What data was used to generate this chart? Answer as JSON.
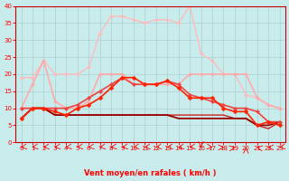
{
  "title": "",
  "xlabel": "Vent moyen/en rafales ( km/h )",
  "ylabel": "",
  "xlim": [
    -0.5,
    23.5
  ],
  "ylim": [
    0,
    40
  ],
  "yticks": [
    0,
    5,
    10,
    15,
    20,
    25,
    30,
    35,
    40
  ],
  "xticks": [
    0,
    1,
    2,
    3,
    4,
    5,
    6,
    7,
    8,
    9,
    10,
    11,
    12,
    13,
    14,
    15,
    16,
    17,
    18,
    19,
    20,
    21,
    22,
    23
  ],
  "background_color": "#c8ecec",
  "series": [
    {
      "x": [
        0,
        1,
        2,
        3,
        4,
        5,
        6,
        7,
        8,
        9,
        10,
        11,
        12,
        13,
        14,
        15,
        16,
        17,
        18,
        19,
        20,
        21,
        22,
        23
      ],
      "y": [
        19,
        19,
        24,
        20,
        20,
        20,
        22,
        32,
        37,
        37,
        36,
        35,
        36,
        36,
        35,
        40,
        26,
        24,
        20,
        20,
        14,
        13,
        11,
        10
      ],
      "color": "#ffbbbb",
      "lw": 1.0,
      "marker": "D",
      "ms": 2.0,
      "zorder": 2
    },
    {
      "x": [
        0,
        1,
        2,
        3,
        4,
        5,
        6,
        7,
        8,
        9,
        10,
        11,
        12,
        13,
        14,
        15,
        16,
        17,
        18,
        19,
        20,
        21,
        22,
        23
      ],
      "y": [
        10,
        17,
        24,
        12,
        10,
        10,
        12,
        20,
        20,
        20,
        17,
        17,
        17,
        17,
        17,
        20,
        20,
        20,
        20,
        20,
        20,
        13,
        11,
        10
      ],
      "color": "#ffaaaa",
      "lw": 1.2,
      "marker": "D",
      "ms": 2.0,
      "zorder": 3
    },
    {
      "x": [
        0,
        1,
        2,
        3,
        4,
        5,
        6,
        7,
        8,
        9,
        10,
        11,
        12,
        13,
        14,
        15,
        16,
        17,
        18,
        19,
        20,
        21,
        22,
        23
      ],
      "y": [
        10,
        10,
        10,
        10,
        10,
        11,
        13,
        15,
        17,
        19,
        17,
        17,
        17,
        18,
        17,
        14,
        13,
        12,
        11,
        10,
        10,
        9,
        6,
        6
      ],
      "color": "#ee4444",
      "lw": 1.2,
      "marker": "D",
      "ms": 2.2,
      "zorder": 5
    },
    {
      "x": [
        0,
        1,
        2,
        3,
        4,
        5,
        6,
        7,
        8,
        9,
        10,
        11,
        12,
        13,
        14,
        15,
        16,
        17,
        18,
        19,
        20,
        21,
        22,
        23
      ],
      "y": [
        7,
        10,
        10,
        9,
        8,
        10,
        11,
        13,
        16,
        19,
        19,
        17,
        17,
        18,
        16,
        13,
        13,
        13,
        10,
        9,
        9,
        5,
        6,
        5
      ],
      "color": "#ff2200",
      "lw": 1.2,
      "marker": "D",
      "ms": 2.5,
      "zorder": 6
    },
    {
      "x": [
        0,
        1,
        2,
        3,
        4,
        5,
        6,
        7,
        8,
        9,
        10,
        11,
        12,
        13,
        14,
        15,
        16,
        17,
        18,
        19,
        20,
        21,
        22,
        23
      ],
      "y": [
        7,
        10,
        10,
        8,
        8,
        8,
        8,
        8,
        8,
        8,
        8,
        8,
        8,
        8,
        7,
        7,
        7,
        7,
        7,
        7,
        7,
        5,
        5,
        6
      ],
      "color": "#990000",
      "lw": 1.3,
      "marker": null,
      "ms": 0,
      "zorder": 4
    },
    {
      "x": [
        0,
        1,
        2,
        3,
        4,
        5,
        6,
        7,
        8,
        9,
        10,
        11,
        12,
        13,
        14,
        15,
        16,
        17,
        18,
        19,
        20,
        21,
        22,
        23
      ],
      "y": [
        7,
        10,
        10,
        8,
        8,
        8,
        8,
        8,
        8,
        8,
        8,
        8,
        8,
        8,
        8,
        8,
        8,
        8,
        8,
        7,
        7,
        5,
        4,
        6
      ],
      "color": "#cc2222",
      "lw": 1.0,
      "marker": null,
      "ms": 0,
      "zorder": 3
    }
  ],
  "wind_arrows": [
    225,
    225,
    225,
    225,
    225,
    225,
    225,
    225,
    225,
    225,
    225,
    225,
    225,
    225,
    225,
    225,
    180,
    135,
    90,
    45,
    0,
    315,
    270,
    225
  ]
}
